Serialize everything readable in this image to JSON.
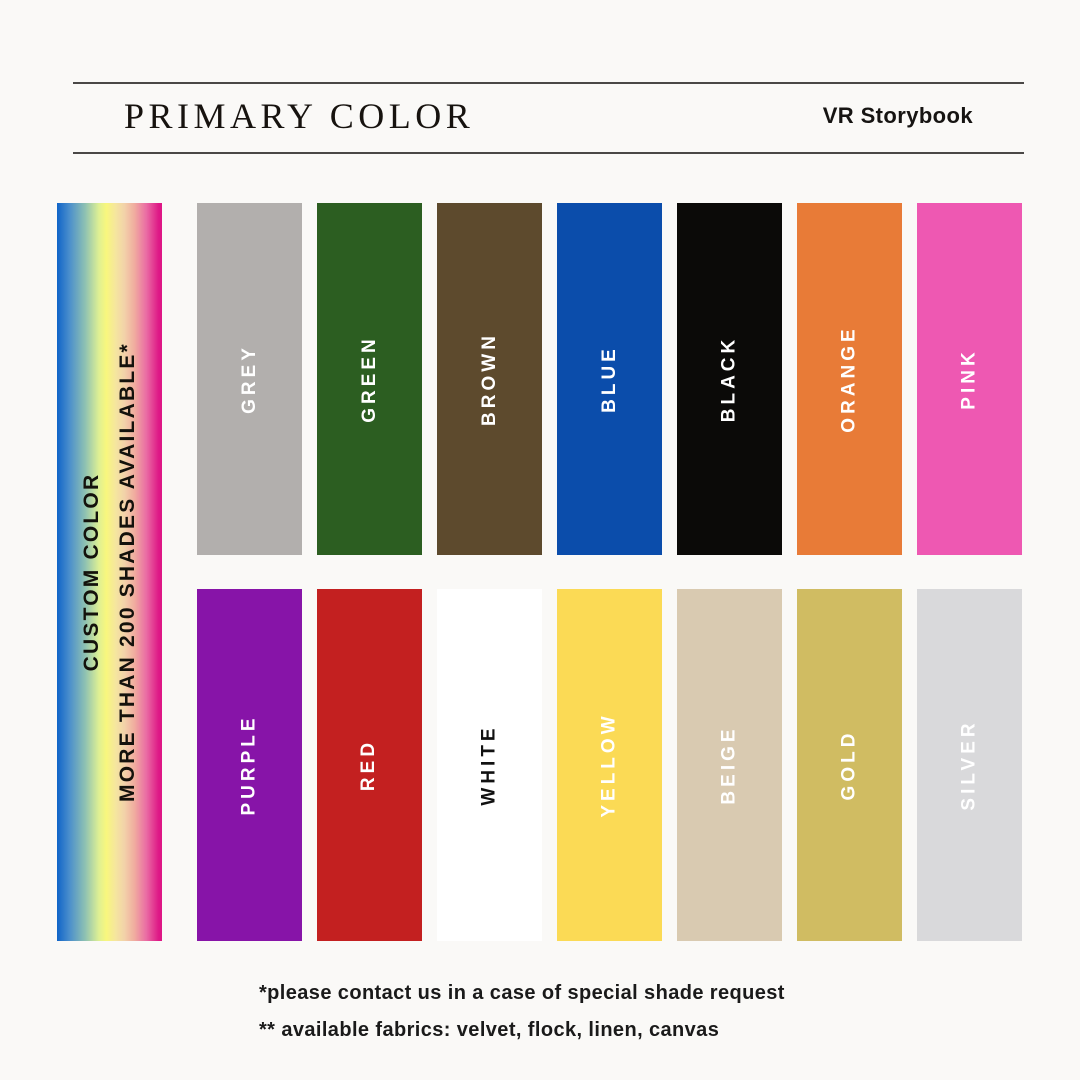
{
  "background": "#faf9f7",
  "header": {
    "title": "PRIMARY COLOR",
    "brand": "VR Storybook",
    "rule_color": "#4a4846"
  },
  "custom_bar": {
    "line1": "CUSTOM COLOR",
    "line2": "MORE THAN 200 SHADES AVAILABLE*",
    "gradient_stops": [
      "#1064c8 0%",
      "#4b8fcc 12%",
      "#8fc2b2 27%",
      "#dff093 40%",
      "#f8f77d 47%",
      "#f5e59f 56%",
      "#f2d3a9 64%",
      "#f0ab9f 74%",
      "#ea6da4 85%",
      "#de1786 97%"
    ]
  },
  "swatches": [
    {
      "label": "GREY",
      "color": "#b2afad",
      "text_color": "#ffffff"
    },
    {
      "label": "GREEN",
      "color": "#2c5e21",
      "text_color": "#ffffff"
    },
    {
      "label": "BROWN",
      "color": "#5d4a2d",
      "text_color": "#ffffff"
    },
    {
      "label": "BLUE",
      "color": "#0b4dab",
      "text_color": "#ffffff"
    },
    {
      "label": "BLACK",
      "color": "#0b0a08",
      "text_color": "#ffffff"
    },
    {
      "label": "ORANGE",
      "color": "#e87b37",
      "text_color": "#ffffff"
    },
    {
      "label": "PINK",
      "color": "#ee58b2",
      "text_color": "#ffffff"
    },
    {
      "label": "PURPLE",
      "color": "#8714a8",
      "text_color": "#ffffff"
    },
    {
      "label": "RED",
      "color": "#c32020",
      "text_color": "#ffffff"
    },
    {
      "label": "WHITE",
      "color": "#ffffff",
      "text_color": "#111111"
    },
    {
      "label": "YELLOW",
      "color": "#fbda55",
      "text_color": "#ffffff"
    },
    {
      "label": "BEIGE",
      "color": "#d9cab1",
      "text_color": "#ffffff"
    },
    {
      "label": "GOLD",
      "color": "#d0bc62",
      "text_color": "#ffffff"
    },
    {
      "label": "SILVER",
      "color": "#d9d9db",
      "text_color": "#ffffff"
    }
  ],
  "footnotes": [
    "*please contact us in a case of special shade request",
    "** available fabrics: velvet, flock, linen, canvas"
  ]
}
